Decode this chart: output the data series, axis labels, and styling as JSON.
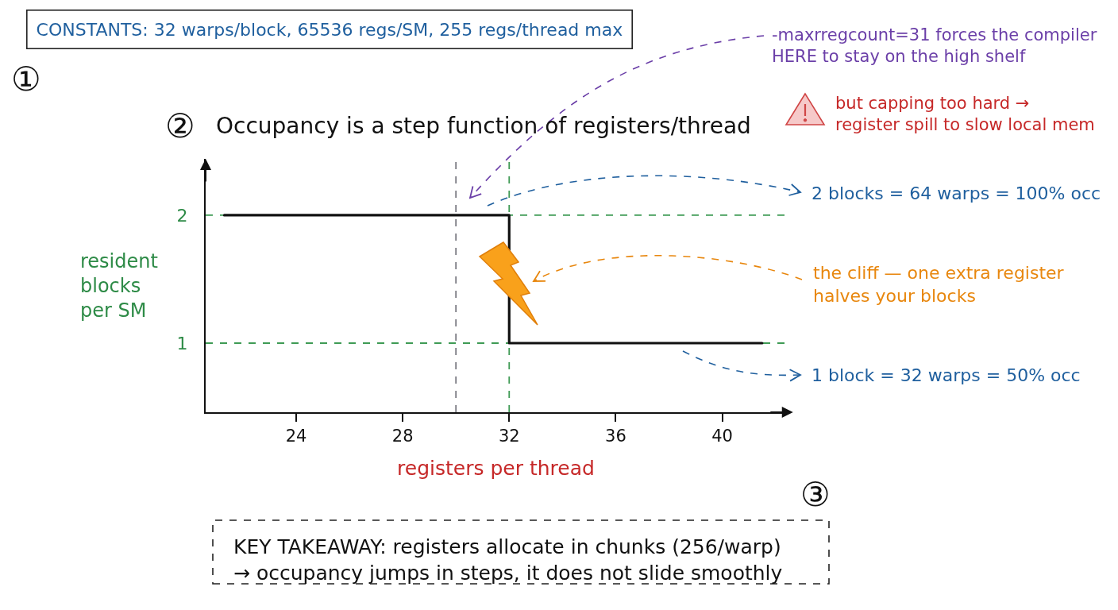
{
  "chart_data": {
    "type": "step",
    "title": "Occupancy is a step function of registers/thread",
    "xlabel": "registers per thread",
    "ylabel": "resident blocks per SM",
    "x": [
      21.3,
      32,
      41.5
    ],
    "series": [
      {
        "color": "#111111",
        "values": [
          2,
          1,
          1
        ]
      }
    ],
    "xlim": [
      20.6,
      42.4
    ],
    "ylim": [
      0.46,
      2.44
    ],
    "xticks": [
      24,
      28,
      32,
      36,
      40
    ],
    "yticks": [
      1,
      2
    ],
    "ref_lines": [
      {
        "axis": "y",
        "value": 2,
        "color": "#3f9b55",
        "line_style": "dashed"
      },
      {
        "axis": "y",
        "value": 1,
        "color": "#3f9b55",
        "line_style": "dashed"
      },
      {
        "axis": "x",
        "value": 32,
        "color": "#3f9b55",
        "line_style": "dashed"
      },
      {
        "axis": "x",
        "value": 30,
        "color": "#7a7a82",
        "line_style": "dashed"
      }
    ],
    "annotations": [
      "CONSTANTS: 32 warps/block, 65536 regs/SM, 255 regs/thread max",
      "①",
      "②",
      "-maxrregcount=31 forces the compiler\nHERE to stay on the high shelf",
      "but capping too hard →\nregister spill to slow local mem",
      "2 blocks = 64 warps = 100% occ",
      "the cliff — one extra register\nhalves your blocks",
      "1 block = 32 warps = 50% occ",
      "KEY TAKEAWAY: registers allocate in chunks (256/warp)\n→ occupancy jumps in steps, it does not slide smoothly",
      "③"
    ]
  }
}
